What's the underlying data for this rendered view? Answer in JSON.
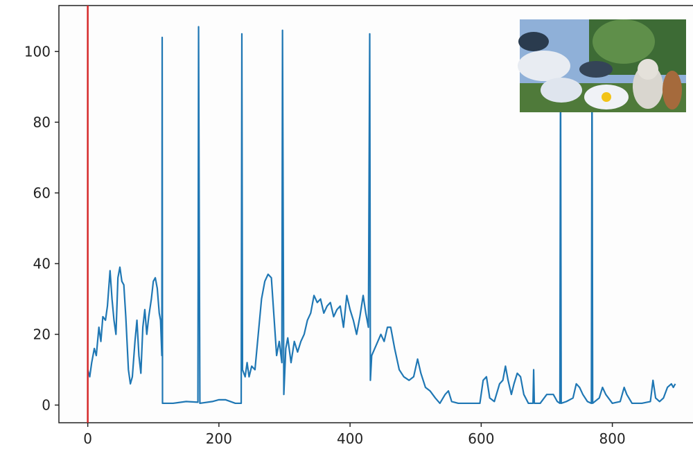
{
  "chart_data": {
    "type": "line",
    "x": [
      0,
      3,
      6,
      10,
      13,
      17,
      20,
      23,
      27,
      30,
      34,
      37,
      40,
      43,
      46,
      49,
      52,
      55,
      58,
      62,
      65,
      68,
      72,
      75,
      78,
      81,
      84,
      87,
      90,
      93,
      97,
      100,
      103,
      106,
      109,
      111,
      113,
      113.5,
      114,
      130,
      150,
      168,
      169,
      171,
      190,
      200,
      210,
      225,
      234,
      235,
      236,
      240,
      243,
      246,
      250,
      255,
      260,
      265,
      270,
      275,
      280,
      284,
      288,
      292,
      296,
      297,
      299,
      302,
      305,
      310,
      315,
      320,
      325,
      330,
      335,
      340,
      345,
      350,
      355,
      360,
      365,
      370,
      375,
      380,
      385,
      390,
      395,
      400,
      405,
      410,
      415,
      420,
      424,
      428,
      430,
      431,
      433,
      440,
      447,
      452,
      457,
      462,
      468,
      475,
      482,
      490,
      497,
      503,
      508,
      515,
      522,
      530,
      537,
      545,
      550,
      555,
      565,
      580,
      598,
      603,
      608,
      613,
      620,
      628,
      633,
      637,
      641,
      646,
      650,
      655,
      660,
      665,
      672,
      679,
      680,
      681,
      690,
      700,
      710,
      716,
      720,
      721,
      722,
      730,
      740,
      745,
      750,
      755,
      762,
      768,
      769,
      770,
      780,
      785,
      790,
      800,
      812,
      818,
      822,
      830,
      845,
      858,
      862,
      866,
      872,
      878,
      884,
      890,
      893,
      896
    ],
    "values": [
      10,
      8,
      12,
      16,
      14,
      22,
      18,
      25,
      24,
      28,
      38,
      30,
      24,
      20,
      36,
      39,
      35,
      34,
      25,
      10,
      6,
      8,
      18,
      24,
      14,
      9,
      22,
      27,
      20,
      25,
      30,
      35,
      36,
      33,
      26,
      24,
      14,
      104,
      0.5,
      0.5,
      1,
      0.8,
      107,
      0.5,
      1,
      1.5,
      1.5,
      0.5,
      0.5,
      105,
      10,
      8,
      12,
      8,
      11,
      10,
      20,
      30,
      35,
      37,
      36,
      25,
      14,
      18,
      12,
      106,
      3,
      16,
      19,
      12,
      18,
      15,
      18,
      20,
      24,
      26,
      31,
      29,
      30,
      26,
      28,
      29,
      25,
      27,
      28,
      22,
      31,
      27,
      24,
      20,
      25,
      31,
      26,
      22,
      105,
      7,
      14,
      17,
      20,
      18,
      22,
      22,
      16,
      10,
      8,
      7,
      8,
      13,
      9,
      5,
      4,
      2,
      0.5,
      3,
      4,
      1,
      0.5,
      0.5,
      0.5,
      7,
      8,
      2,
      1,
      6,
      7,
      11,
      7,
      3,
      6,
      9,
      8,
      3,
      0.5,
      0.5,
      10,
      0.5,
      0.5,
      3,
      3,
      1,
      0.5,
      100,
      0.5,
      1,
      2,
      6,
      5,
      3,
      1,
      0.5,
      100,
      0.5,
      2,
      5,
      3,
      0.5,
      1,
      5,
      3,
      0.5,
      0.5,
      1,
      7,
      2,
      1,
      2,
      5,
      6,
      5,
      6
    ],
    "color": "#1f77b4",
    "vline_x": 0,
    "vline_color": "#d62728",
    "xlim": [
      -44,
      923
    ],
    "ylim": [
      -5,
      113
    ],
    "xticks": [
      0,
      200,
      400,
      600,
      800
    ],
    "yticks": [
      0,
      20,
      40,
      60,
      80,
      100
    ]
  }
}
